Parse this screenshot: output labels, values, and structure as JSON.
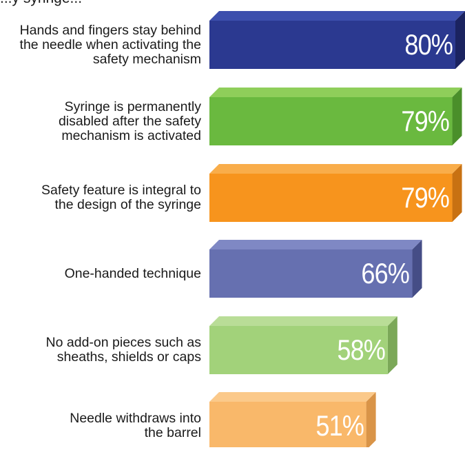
{
  "chart_data": {
    "type": "bar",
    "orientation": "horizontal",
    "title": "...y syringe...",
    "categories": [
      "Hands and fingers stay behind the needle when activating the safety mechanism",
      "Syringe is permanently disabled after the safety mechanism is activated",
      "Safety feature is integral to the design of the syringe",
      "One-handed technique",
      "No add-on pieces such as sheaths, shields or caps",
      "Needle withdraws into the barrel"
    ],
    "category_lines": [
      [
        "Hands and fingers stay behind",
        "the needle when activating the",
        "safety mechanism"
      ],
      [
        "Syringe is permanently",
        "disabled after the safety",
        "mechanism is activated"
      ],
      [
        "Safety feature is integral to",
        "the design of the syringe"
      ],
      [
        "One-handed technique"
      ],
      [
        "No add-on pieces such as",
        "sheaths, shields or caps"
      ],
      [
        "Needle withdraws into",
        "the barrel"
      ]
    ],
    "values": [
      80,
      79,
      79,
      66,
      58,
      51
    ],
    "value_labels": [
      "80%",
      "79%",
      "79%",
      "66%",
      "58%",
      "51%"
    ],
    "unit": "%",
    "colors": [
      {
        "front": "#2b3990",
        "top": "#3d4fad",
        "side": "#1b2360"
      },
      {
        "front": "#6ab93f",
        "top": "#8fce5a",
        "side": "#4a8f2a"
      },
      {
        "front": "#f7941d",
        "top": "#f9ad4a",
        "side": "#c87112"
      },
      {
        "front": "#6670b0",
        "top": "#7f88c4",
        "side": "#454d86"
      },
      {
        "front": "#a2d27a",
        "top": "#b9dd97",
        "side": "#7ba858"
      },
      {
        "front": "#f9b86a",
        "top": "#fbc98a",
        "side": "#d99448"
      }
    ],
    "xlim": [
      0,
      100
    ],
    "grid": false,
    "legend": "none",
    "style": "3d-bars"
  }
}
